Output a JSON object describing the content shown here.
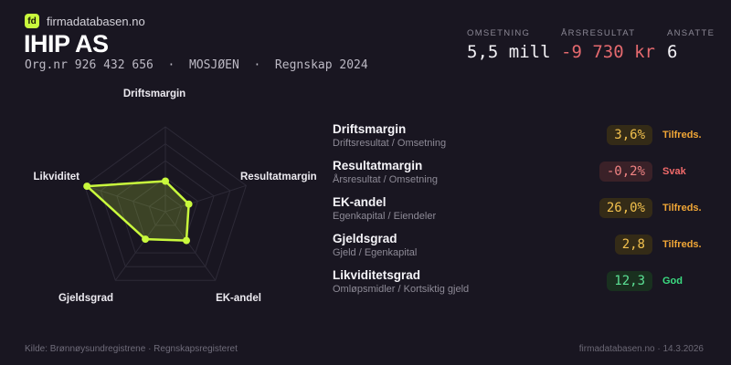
{
  "brand": {
    "logo_text": "fd",
    "site": "firmadatabasen.no",
    "accent": "#c9f93d"
  },
  "header": {
    "title": "IHIP AS",
    "subtitle": "Org.nr 926 432 656  ·  MOSJØEN  ·  Regnskap 2024",
    "stats": [
      {
        "label": "OMSETNING",
        "value": "5,5 mill",
        "color": "#f2f1f5"
      },
      {
        "label": "ÅRSRESULTAT",
        "value": "-9 730 kr",
        "color": "#e4696e"
      },
      {
        "label": "ANSATTE",
        "value": "6",
        "color": "#f2f1f5"
      }
    ]
  },
  "chart_data": {
    "type": "radar",
    "axes": [
      "Driftsmargin",
      "Resultatmargin",
      "EK-andel",
      "Gjeldsgrad",
      "Likviditet"
    ],
    "values_normalized": [
      0.36,
      0.29,
      0.42,
      0.4,
      0.97
    ],
    "metric_values": [
      "3,6%",
      "-0,2%",
      "26,0%",
      "2,8",
      "12,3"
    ],
    "grid_levels": 5,
    "legend": "none",
    "accent": "#c9f93d"
  },
  "metrics": [
    {
      "name": "Driftsmargin",
      "formula": "Driftsresultat / Omsetning",
      "value": "3,6%",
      "status": "Tilfreds.",
      "tone": "amber"
    },
    {
      "name": "Resultatmargin",
      "formula": "Årsresultat / Omsetning",
      "value": "-0,2%",
      "status": "Svak",
      "tone": "red"
    },
    {
      "name": "EK-andel",
      "formula": "Egenkapital / Eiendeler",
      "value": "26,0%",
      "status": "Tilfreds.",
      "tone": "amber"
    },
    {
      "name": "Gjeldsgrad",
      "formula": "Gjeld / Egenkapital",
      "value": "2,8",
      "status": "Tilfreds.",
      "tone": "amber"
    },
    {
      "name": "Likviditetsgrad",
      "formula": "Omløpsmidler / Kortsiktig gjeld",
      "value": "12,3",
      "status": "God",
      "tone": "green"
    }
  ],
  "footer": {
    "left": "Kilde: Brønnøysundregistrene · Regnskapsregisteret",
    "right": "firmadatabasen.no · 14.3.2026"
  },
  "colors": {
    "background": "#191621",
    "lime_accent": "#c9f93d",
    "amber": "#f0a636",
    "red": "#f16a6a",
    "green": "#3bdc81"
  }
}
